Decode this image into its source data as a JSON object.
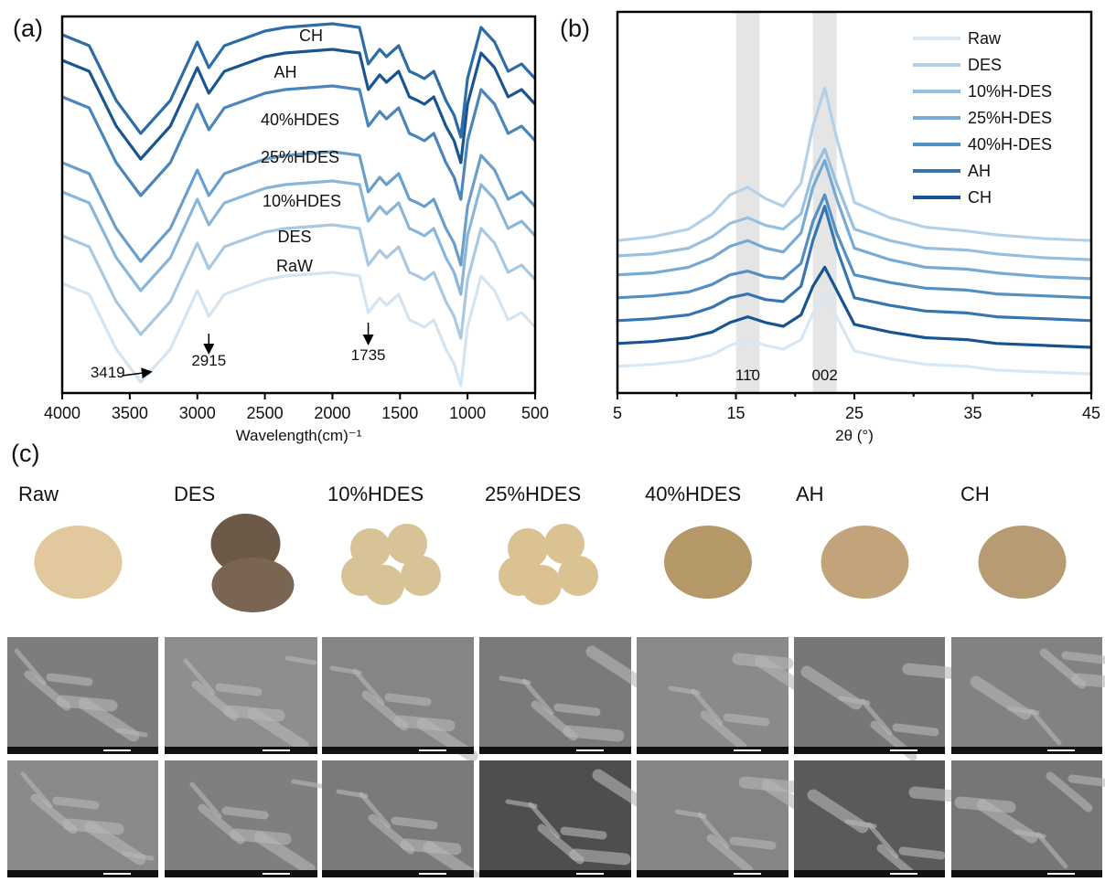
{
  "chart_data": [
    {
      "type": "line",
      "panel": "(a)",
      "xlabel": "Wavelength(cm)⁻¹",
      "xlim": [
        4000,
        500
      ],
      "ylim": [
        -3,
        100
      ],
      "xticks": [
        4000,
        3500,
        3000,
        2500,
        2000,
        1500,
        1000,
        500
      ],
      "x": [
        4000,
        3800,
        3600,
        3419,
        3200,
        3000,
        2915,
        2800,
        2500,
        2350,
        2000,
        1800,
        1735,
        1650,
        1600,
        1510,
        1430,
        1370,
        1320,
        1250,
        1160,
        1100,
        1050,
        1000,
        900,
        800,
        700,
        600,
        500
      ],
      "series": [
        {
          "name": "CH",
          "color": "#2e6ca8",
          "values": [
            95,
            92,
            77,
            68,
            77,
            93,
            86,
            92,
            96,
            97,
            98,
            97,
            87,
            91,
            89,
            92,
            85,
            84,
            83,
            85,
            77,
            73,
            67,
            83,
            97,
            93,
            85,
            87,
            83
          ]
        },
        {
          "name": "AH",
          "color": "#1a5592",
          "values": [
            88,
            85,
            70,
            61,
            70,
            86,
            79,
            85,
            89,
            90,
            91,
            90,
            80,
            84,
            82,
            85,
            78,
            77,
            76,
            78,
            70,
            66,
            60,
            76,
            90,
            86,
            78,
            80,
            76
          ]
        },
        {
          "name": "40%HDES",
          "color": "#4a86bd",
          "values": [
            78,
            75,
            60,
            51,
            60,
            76,
            69,
            75,
            79,
            80,
            81,
            80,
            70,
            74,
            72,
            75,
            68,
            67,
            66,
            68,
            60,
            56,
            50,
            66,
            80,
            76,
            68,
            70,
            66
          ]
        },
        {
          "name": "25%HDES",
          "color": "#6a9fcc",
          "values": [
            60,
            57,
            42,
            33,
            42,
            58,
            51,
            57,
            61,
            62,
            63,
            62,
            52,
            56,
            54,
            57,
            50,
            49,
            48,
            50,
            42,
            38,
            32,
            48,
            62,
            58,
            50,
            52,
            48
          ]
        },
        {
          "name": "10%HDES",
          "color": "#8ab6da",
          "values": [
            52,
            49,
            34,
            25,
            34,
            50,
            43,
            49,
            53,
            54,
            55,
            54,
            44,
            48,
            46,
            49,
            42,
            41,
            40,
            42,
            34,
            30,
            24,
            40,
            54,
            50,
            42,
            44,
            40
          ]
        },
        {
          "name": "DES",
          "color": "#a9c9e3",
          "values": [
            40,
            37,
            22,
            13,
            22,
            38,
            31,
            37,
            41,
            42,
            43,
            42,
            32,
            36,
            34,
            37,
            30,
            29,
            28,
            30,
            22,
            18,
            12,
            28,
            42,
            38,
            30,
            32,
            28
          ]
        },
        {
          "name": "RaW",
          "color": "#d3e5f3",
          "values": [
            27,
            24,
            9,
            0,
            9,
            25,
            18,
            24,
            28,
            29,
            30,
            29,
            19,
            23,
            21,
            24,
            17,
            16,
            15,
            17,
            9,
            5,
            -1,
            15,
            29,
            25,
            17,
            19,
            15
          ]
        }
      ],
      "annotations": [
        {
          "x": 3419
        },
        {
          "x": 2915
        },
        {
          "x": 1735
        }
      ]
    },
    {
      "type": "line",
      "panel": "(b)",
      "xlabel": "2θ (°)",
      "xlim": [
        5,
        45
      ],
      "ylim": [
        0,
        100
      ],
      "xticks": [
        5,
        15,
        25,
        35,
        45
      ],
      "xminorticks": [
        10,
        20,
        30,
        40
      ],
      "legend": "upper right",
      "bands": [
        {
          "range": [
            15,
            17
          ]
        },
        {
          "range": [
            21.5,
            23.5
          ]
        }
      ],
      "band_labels": [
        "11̄0",
        "002"
      ],
      "x": [
        5,
        8,
        11,
        13,
        14.5,
        16,
        17.5,
        19,
        20.5,
        21.5,
        22.5,
        23.5,
        25,
        28,
        31,
        34.5,
        37,
        41,
        45
      ],
      "series": [
        {
          "name": "Raw",
          "color": "#d6e7f5",
          "values": [
            7,
            7.5,
            8.5,
            10,
            12.5,
            14,
            12.5,
            11.5,
            14,
            21,
            26,
            20,
            11,
            9,
            7.5,
            7,
            6,
            5.5,
            5
          ]
        },
        {
          "name": "DES",
          "color": "#b5d1e8",
          "values": [
            40,
            41,
            43,
            47,
            52,
            54,
            51,
            49,
            55,
            70,
            80,
            67,
            50,
            46,
            43.5,
            42.5,
            41.5,
            40.5,
            40
          ]
        },
        {
          "name": "10%H-DES",
          "color": "#97c0e0",
          "values": [
            36,
            36.5,
            38,
            41,
            44.5,
            46,
            44,
            43,
            47,
            58,
            64,
            55,
            43,
            40,
            38,
            37.5,
            36.5,
            35.5,
            35
          ]
        },
        {
          "name": "25%H-DES",
          "color": "#76a9d3",
          "values": [
            31,
            31.5,
            33,
            35.5,
            38.5,
            40,
            38,
            37,
            42,
            54,
            61,
            51,
            38,
            35,
            33,
            32.5,
            31.5,
            30.5,
            30
          ]
        },
        {
          "name": "40%H-DES",
          "color": "#5590c3",
          "values": [
            25,
            25.5,
            26.5,
            28.5,
            31,
            32,
            30.5,
            30,
            34,
            45,
            52,
            42,
            31,
            29,
            27.5,
            27,
            26,
            25.5,
            25
          ]
        },
        {
          "name": "AH",
          "color": "#3775b1",
          "values": [
            19,
            19.5,
            20.5,
            22.5,
            25,
            26,
            24.5,
            24,
            28,
            40,
            49,
            38,
            25,
            23,
            21.5,
            21,
            20,
            19.5,
            19
          ]
        },
        {
          "name": "CH",
          "color": "#185493",
          "values": [
            13,
            13.5,
            14.5,
            16,
            18.5,
            20,
            18.5,
            17.5,
            20.5,
            28,
            33,
            27,
            18,
            16,
            14.5,
            14,
            13,
            12.5,
            12
          ]
        }
      ]
    }
  ],
  "panel_c": {
    "label": "(c)",
    "samples": [
      "Raw",
      "DES",
      "10%HDES",
      "25%HDES",
      "40%HDES",
      "AH",
      "CH"
    ]
  }
}
